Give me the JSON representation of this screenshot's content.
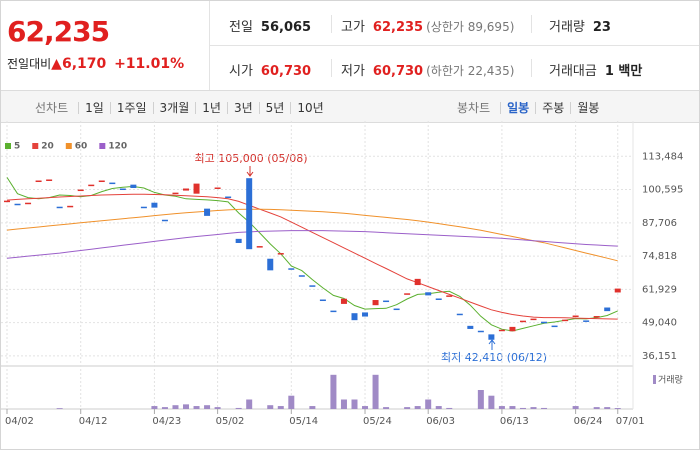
{
  "quote": {
    "price": "62,235",
    "change_label": "전일대비",
    "change_arrow": "▲",
    "change": "6,170",
    "change_pct": "+11.01%"
  },
  "info": [
    {
      "label": "전일",
      "value": "56,065"
    },
    {
      "label": "고가",
      "value": "62,235",
      "note": "(상한가 89,695)"
    },
    {
      "label": "거래량",
      "value": "23"
    },
    {
      "label": "시가",
      "value": "60,730"
    },
    {
      "label": "저가",
      "value": "60,730",
      "note": "(하한가 22,435)"
    },
    {
      "label": "거래대금",
      "value": "1 백만"
    }
  ],
  "tabs": {
    "line_chart": {
      "label": "선차트",
      "options": [
        "1일",
        "1주일",
        "3개월",
        "1년",
        "3년",
        "5년",
        "10년"
      ]
    },
    "candle_chart": {
      "label": "봉차트",
      "options": [
        "일봉",
        "주봉",
        "월봉"
      ],
      "selected": 0
    }
  },
  "chart_data": {
    "type": "candlestick",
    "categories": [
      "04/02",
      null,
      null,
      null,
      null,
      null,
      null,
      "04/12",
      null,
      null,
      null,
      null,
      null,
      null,
      "04/23",
      null,
      null,
      null,
      null,
      null,
      "05/02",
      null,
      null,
      null,
      null,
      null,
      null,
      "05/14",
      null,
      null,
      null,
      null,
      null,
      null,
      "05/24",
      null,
      null,
      null,
      null,
      null,
      "06/03",
      null,
      null,
      null,
      null,
      null,
      null,
      "06/13",
      null,
      null,
      null,
      null,
      null,
      null,
      "06/24",
      null,
      null,
      null,
      "07/01"
    ],
    "open": [
      96300,
      95100,
      95500,
      103700,
      104500,
      93950,
      94300,
      100600,
      102500,
      104100,
      103300,
      101000,
      102500,
      93950,
      95500,
      88900,
      99400,
      100200,
      99000,
      93200,
      101400,
      97900,
      81500,
      105000,
      78700,
      73800,
      76000,
      70100,
      67400,
      63500,
      58000,
      53700,
      56300,
      52700,
      53000,
      55800,
      57600,
      54500,
      60400,
      63600,
      60800,
      58400,
      59600,
      52500,
      47800,
      45900,
      44500,
      46300,
      45700,
      49800,
      50600,
      49400,
      47900,
      50200,
      51800,
      49900,
      51600,
      54900,
      60730
    ],
    "close": [
      96300,
      95100,
      95500,
      104100,
      104500,
      93950,
      94300,
      100600,
      102500,
      104100,
      103300,
      101000,
      101200,
      93950,
      93600,
      88900,
      99400,
      101000,
      102900,
      90400,
      101400,
      97900,
      79900,
      77500,
      78700,
      69300,
      76000,
      70100,
      67400,
      63500,
      58000,
      53700,
      58300,
      50000,
      51400,
      57800,
      57600,
      54500,
      60400,
      66000,
      59600,
      58400,
      59600,
      52500,
      46600,
      45900,
      42410,
      46300,
      47400,
      49800,
      50600,
      49400,
      47900,
      50200,
      51800,
      49900,
      51600,
      53500,
      62235
    ],
    "up_color": "#e0312c",
    "down_color": "#2c6fd6",
    "series": [
      {
        "name": "5",
        "color": "#5bb02f",
        "values": [
          105300,
          99000,
          97500,
          97000,
          97500,
          98500,
          98300,
          97800,
          98300,
          99800,
          101000,
          101500,
          101800,
          101200,
          99500,
          98500,
          98000,
          97000,
          96800,
          96600,
          96300,
          95800,
          91500,
          88000,
          83800,
          79500,
          75700,
          71000,
          69200,
          65700,
          62500,
          59600,
          58400,
          55700,
          54300,
          54500,
          54600,
          56000,
          58200,
          60000,
          60200,
          60800,
          61200,
          59200,
          55800,
          51500,
          48200,
          46500,
          45800,
          46800,
          47800,
          48800,
          49300,
          50000,
          50600,
          50500,
          51000,
          51800,
          53600
        ]
      },
      {
        "name": "20",
        "color": "#e4423b",
        "values": [
          96500,
          96800,
          97000,
          97200,
          97500,
          97700,
          97900,
          98100,
          98300,
          98500,
          98600,
          98700,
          98800,
          98800,
          98700,
          98600,
          98400,
          98200,
          98000,
          97800,
          97500,
          97000,
          96000,
          94500,
          93000,
          91500,
          90000,
          88000,
          86000,
          84000,
          82000,
          80000,
          78000,
          76000,
          74000,
          72000,
          70000,
          68000,
          66000,
          64500,
          63000,
          61500,
          60000,
          58500,
          57000,
          55500,
          54000,
          53000,
          52200,
          51600,
          51200,
          51000,
          51000,
          50900,
          50800,
          50700,
          50600,
          50500,
          50400
        ]
      },
      {
        "name": "60",
        "color": "#f0912b",
        "values": [
          84900,
          85300,
          85700,
          86100,
          86500,
          86900,
          87300,
          87700,
          88100,
          88500,
          88900,
          89300,
          89700,
          90100,
          90500,
          90900,
          91300,
          91600,
          91900,
          92200,
          92500,
          92700,
          92900,
          93000,
          93000,
          92900,
          92800,
          92600,
          92400,
          92200,
          92000,
          91700,
          91400,
          91000,
          90600,
          90200,
          89800,
          89400,
          89000,
          88500,
          88000,
          87400,
          86800,
          86200,
          85500,
          84800,
          84000,
          83200,
          82400,
          81600,
          80800,
          80000,
          79000,
          78000,
          77000,
          76000,
          75000,
          74000,
          73000
        ]
      },
      {
        "name": "120",
        "color": "#9b5fc9",
        "values": [
          74000,
          74400,
          74800,
          75200,
          75600,
          76000,
          76500,
          77000,
          77500,
          78000,
          78500,
          79000,
          79500,
          80000,
          80500,
          81000,
          81500,
          82000,
          82400,
          82800,
          83200,
          83600,
          84000,
          84200,
          84400,
          84500,
          84600,
          84700,
          84700,
          84700,
          84700,
          84600,
          84500,
          84400,
          84300,
          84100,
          83900,
          83700,
          83500,
          83300,
          83100,
          82900,
          82700,
          82500,
          82300,
          82100,
          81900,
          81700,
          81400,
          81100,
          80800,
          80500,
          80200,
          79900,
          79600,
          79300,
          79100,
          78900,
          78700
        ]
      }
    ],
    "ylim": [
      32245,
      127155
    ],
    "yticks": [
      {
        "value": 113484,
        "label": "113,484"
      },
      {
        "value": 100595,
        "label": "100,595"
      },
      {
        "value": 87706,
        "label": "87,706"
      },
      {
        "value": 74818,
        "label": "74,818"
      },
      {
        "value": 61929,
        "label": "61,929"
      },
      {
        "value": 49040,
        "label": "49,040"
      },
      {
        "value": 36151,
        "label": "36,151"
      }
    ],
    "grid": true,
    "annotations": [
      "최고 105,000 (05/08)",
      "최저 42,410 (06/12)"
    ],
    "volume": {
      "label": "거래량",
      "color": "#a08ac6",
      "ylim": [
        0,
        900
      ],
      "values": [
        0,
        0,
        0,
        0,
        0,
        20,
        0,
        0,
        0,
        0,
        0,
        0,
        0,
        0,
        70,
        45,
        90,
        110,
        70,
        90,
        45,
        0,
        25,
        225,
        0,
        90,
        70,
        315,
        0,
        70,
        0,
        810,
        225,
        225,
        70,
        810,
        45,
        0,
        45,
        70,
        225,
        70,
        25,
        0,
        0,
        450,
        315,
        70,
        70,
        25,
        45,
        25,
        0,
        0,
        70,
        0,
        45,
        45,
        23
      ]
    }
  }
}
